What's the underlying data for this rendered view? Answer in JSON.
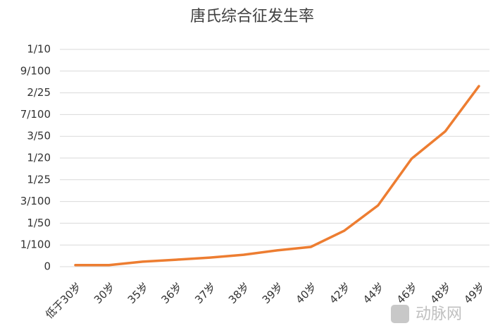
{
  "chart_data": {
    "type": "line",
    "title": "唐氏综合征发生率",
    "categories": [
      "低于30岁",
      "30岁",
      "35岁",
      "36岁",
      "37岁",
      "38岁",
      "39岁",
      "40岁",
      "42岁",
      "44岁",
      "46岁",
      "48岁",
      "49岁"
    ],
    "series": [
      {
        "name": "唐氏综合征发生率",
        "color": "#ed7d31",
        "values": [
          0.0007,
          0.0007,
          0.0023,
          0.0032,
          0.0042,
          0.0055,
          0.0075,
          0.0091,
          0.0166,
          0.0282,
          0.0497,
          0.0623,
          0.0831
        ]
      }
    ],
    "ylim": [
      0,
      0.1
    ],
    "yticks": [
      0,
      {
        "value": 0.01,
        "label": "1/100"
      },
      {
        "value": 0.02,
        "label": "1/50"
      },
      {
        "value": 0.03,
        "label": "3/100"
      },
      {
        "value": 0.04,
        "label": "1/25"
      },
      {
        "value": 0.05,
        "label": "1/20"
      },
      {
        "value": 0.06,
        "label": "3/50"
      },
      {
        "value": 0.07,
        "label": "7/100"
      },
      {
        "value": 0.08,
        "label": "2/25"
      },
      {
        "value": 0.09,
        "label": "9/100"
      },
      {
        "value": 0.1,
        "label": "1/10"
      }
    ],
    "grid": true
  },
  "watermark": "动脉网"
}
